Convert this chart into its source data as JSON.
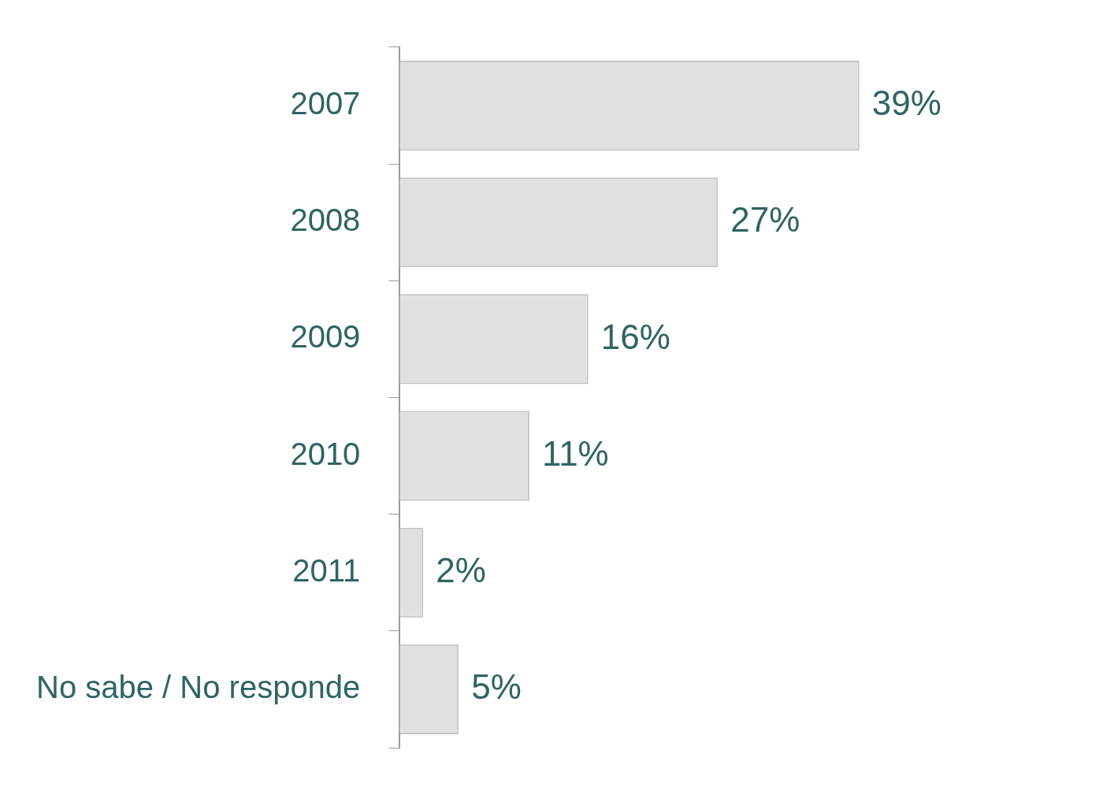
{
  "chart_data": {
    "type": "bar",
    "orientation": "horizontal",
    "categories": [
      "2007",
      "2008",
      "2009",
      "2010",
      "2011",
      "No sabe / No responde"
    ],
    "values": [
      39,
      27,
      16,
      11,
      2,
      5
    ],
    "value_labels": [
      "39%",
      "27%",
      "16%",
      "11%",
      "2%",
      "5%"
    ],
    "color": "#e0e0e0",
    "legend": false,
    "tick_labels": "y"
  }
}
